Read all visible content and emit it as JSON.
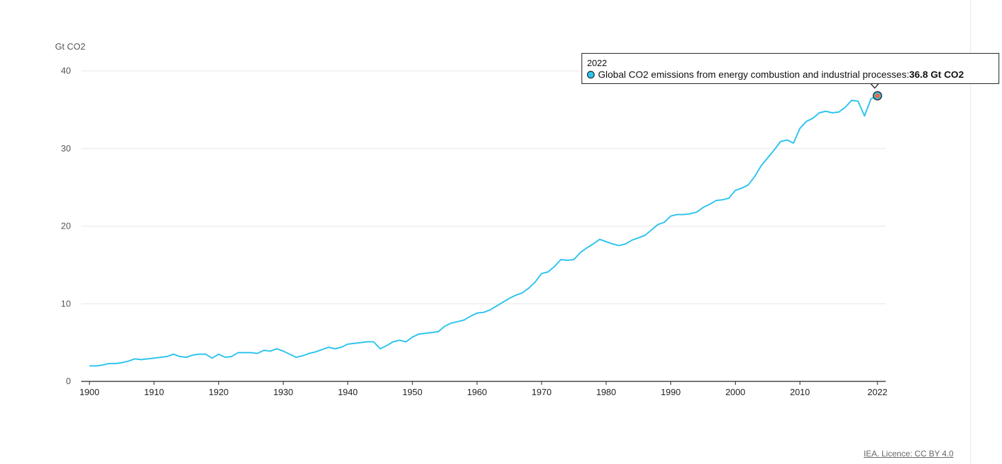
{
  "chart_data": {
    "type": "line",
    "ylabel": "Gt CO2",
    "ylim": [
      0,
      40
    ],
    "xlim": [
      1900,
      2022
    ],
    "yticks": [
      "0",
      "10",
      "20",
      "30",
      "40"
    ],
    "xticks": [
      "1900",
      "1910",
      "1920",
      "1930",
      "1940",
      "1950",
      "1960",
      "1970",
      "1980",
      "1990",
      "2000",
      "2010",
      "2022"
    ],
    "grid": true,
    "series": [
      {
        "name": "Global CO2 emissions from energy combustion and industrial processes",
        "color": "#2ec4ee",
        "x": [
          1900,
          1901,
          1902,
          1903,
          1904,
          1905,
          1906,
          1907,
          1908,
          1909,
          1910,
          1911,
          1912,
          1913,
          1914,
          1915,
          1916,
          1917,
          1918,
          1919,
          1920,
          1921,
          1922,
          1923,
          1924,
          1925,
          1926,
          1927,
          1928,
          1929,
          1930,
          1931,
          1932,
          1933,
          1934,
          1935,
          1936,
          1937,
          1938,
          1939,
          1940,
          1941,
          1942,
          1943,
          1944,
          1945,
          1946,
          1947,
          1948,
          1949,
          1950,
          1951,
          1952,
          1953,
          1954,
          1955,
          1956,
          1957,
          1958,
          1959,
          1960,
          1961,
          1962,
          1963,
          1964,
          1965,
          1966,
          1967,
          1968,
          1969,
          1970,
          1971,
          1972,
          1973,
          1974,
          1975,
          1976,
          1977,
          1978,
          1979,
          1980,
          1981,
          1982,
          1983,
          1984,
          1985,
          1986,
          1987,
          1988,
          1989,
          1990,
          1991,
          1992,
          1993,
          1994,
          1995,
          1996,
          1997,
          1998,
          1999,
          2000,
          2001,
          2002,
          2003,
          2004,
          2005,
          2006,
          2007,
          2008,
          2009,
          2010,
          2011,
          2012,
          2013,
          2014,
          2015,
          2016,
          2017,
          2018,
          2019,
          2020,
          2021,
          2022
        ],
        "values": [
          2.0,
          2.0,
          2.1,
          2.3,
          2.3,
          2.4,
          2.6,
          2.9,
          2.8,
          2.9,
          3.0,
          3.1,
          3.2,
          3.5,
          3.2,
          3.1,
          3.4,
          3.5,
          3.5,
          3.0,
          3.5,
          3.1,
          3.2,
          3.7,
          3.7,
          3.7,
          3.6,
          4.0,
          3.9,
          4.2,
          3.9,
          3.5,
          3.1,
          3.3,
          3.6,
          3.8,
          4.1,
          4.4,
          4.2,
          4.4,
          4.8,
          4.9,
          5.0,
          5.1,
          5.1,
          4.2,
          4.6,
          5.1,
          5.3,
          5.1,
          5.7,
          6.1,
          6.2,
          6.3,
          6.4,
          7.1,
          7.5,
          7.7,
          7.9,
          8.4,
          8.8,
          8.9,
          9.2,
          9.7,
          10.2,
          10.7,
          11.1,
          11.4,
          12.0,
          12.8,
          13.9,
          14.1,
          14.8,
          15.7,
          15.6,
          15.7,
          16.6,
          17.2,
          17.7,
          18.3,
          18.0,
          17.7,
          17.5,
          17.7,
          18.2,
          18.5,
          18.8,
          19.5,
          20.2,
          20.5,
          21.3,
          21.5,
          21.5,
          21.6,
          21.8,
          22.4,
          22.8,
          23.3,
          23.4,
          23.6,
          24.6,
          24.9,
          25.3,
          26.4,
          27.8,
          28.8,
          29.8,
          30.9,
          31.1,
          30.7,
          32.6,
          33.5,
          33.9,
          34.6,
          34.8,
          34.6,
          34.7,
          35.3,
          36.2,
          36.1,
          34.2,
          36.4,
          36.8
        ]
      }
    ],
    "highlight": {
      "x": 2022,
      "y": 36.8
    }
  },
  "tooltip": {
    "year": "2022",
    "series_label": "Global CO2 emissions from energy combustion and industrial processes: ",
    "value_label": "36.8 Gt CO2"
  },
  "source": "IEA. Licence: CC BY 4.0"
}
